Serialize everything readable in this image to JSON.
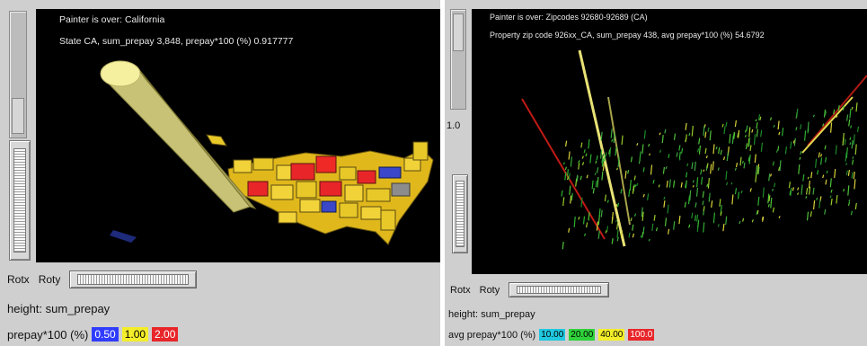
{
  "left": {
    "hover_line1": "Painter is over:  California",
    "hover_line2": "State CA, sum_prepay 3,848, prepay*100 (%) 0.917777",
    "rotx_label": "Rotx",
    "roty_label": "Roty",
    "height_label": "height: sum_prepay",
    "color_label": "prepay*100 (%)",
    "legend": [
      {
        "value": "0.50",
        "color": "#2f3cff",
        "text_color": "#ffffff"
      },
      {
        "value": "1.00",
        "color": "#f4ee2a",
        "text_color": "#000000"
      },
      {
        "value": "2.00",
        "color": "#e8262a",
        "text_color": "#ffffff"
      }
    ]
  },
  "right": {
    "side_tick": "1.0",
    "hover_line1": "Painter is over:  Zipcodes 92680-92689 (CA)",
    "hover_line2": "Property zip code 926xx_CA, sum_prepay 438, avg prepay*100 (%) 54.6792",
    "rotx_label": "Rotx",
    "roty_label": "Roty",
    "height_label": "height: sum_prepay",
    "color_label": "avg prepay*100 (%)",
    "legend": [
      {
        "value": "10.00",
        "color": "#20c8e0",
        "text_color": "#000000"
      },
      {
        "value": "20.00",
        "color": "#2fd23a",
        "text_color": "#000000"
      },
      {
        "value": "40.00",
        "color": "#f4ee2a",
        "text_color": "#000000"
      },
      {
        "value": "100.0",
        "color": "#e8262a",
        "text_color": "#ffffff"
      }
    ]
  }
}
